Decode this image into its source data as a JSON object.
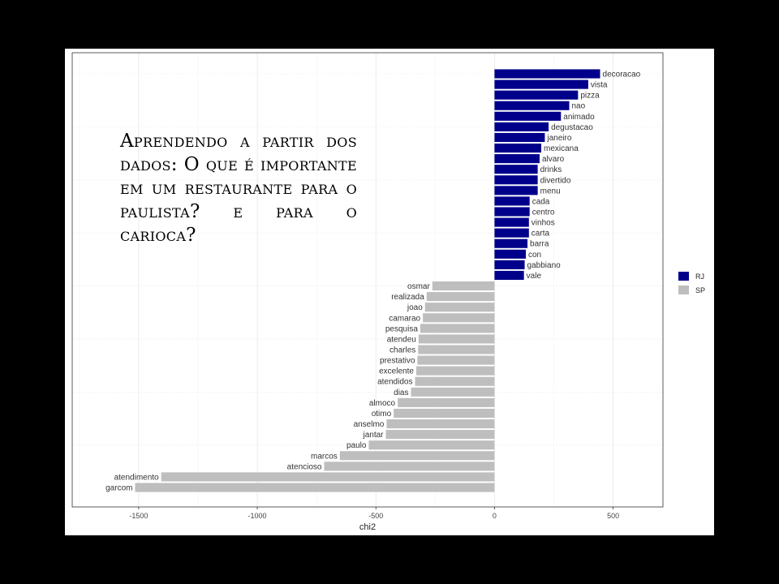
{
  "overlay_title": "Aprendendo a partir dos dados: O que é importante em um restaurante para o paulista? e para o carioca?",
  "chart_data": {
    "type": "bar",
    "orientation": "horizontal",
    "xlabel": "chi2",
    "ylabel": "",
    "xlim": [
      -1780,
      710
    ],
    "xticks": [
      -1500,
      -1000,
      -500,
      0,
      500
    ],
    "grid": true,
    "legend_position": "right",
    "series": [
      {
        "name": "RJ",
        "color": "#00008B"
      },
      {
        "name": "SP",
        "color": "#BEBEBE"
      }
    ],
    "bars": [
      {
        "label": "decoracao",
        "value": 445,
        "series": "RJ"
      },
      {
        "label": "vista",
        "value": 395,
        "series": "RJ"
      },
      {
        "label": "pizza",
        "value": 352,
        "series": "RJ"
      },
      {
        "label": "nao",
        "value": 315,
        "series": "RJ"
      },
      {
        "label": "animado",
        "value": 280,
        "series": "RJ"
      },
      {
        "label": "degustacao",
        "value": 228,
        "series": "RJ"
      },
      {
        "label": "janeiro",
        "value": 212,
        "series": "RJ"
      },
      {
        "label": "mexicana",
        "value": 197,
        "series": "RJ"
      },
      {
        "label": "alvaro",
        "value": 190,
        "series": "RJ"
      },
      {
        "label": "drinks",
        "value": 182,
        "series": "RJ"
      },
      {
        "label": "divertido",
        "value": 182,
        "series": "RJ"
      },
      {
        "label": "menu",
        "value": 182,
        "series": "RJ"
      },
      {
        "label": "cada",
        "value": 148,
        "series": "RJ"
      },
      {
        "label": "centro",
        "value": 148,
        "series": "RJ"
      },
      {
        "label": "vinhos",
        "value": 145,
        "series": "RJ"
      },
      {
        "label": "carta",
        "value": 145,
        "series": "RJ"
      },
      {
        "label": "barra",
        "value": 139,
        "series": "RJ"
      },
      {
        "label": "con",
        "value": 132,
        "series": "RJ"
      },
      {
        "label": "gabbiano",
        "value": 127,
        "series": "RJ"
      },
      {
        "label": "vale",
        "value": 124,
        "series": "RJ"
      },
      {
        "label": "osmar",
        "value": -262,
        "series": "SP"
      },
      {
        "label": "realizada",
        "value": -286,
        "series": "SP"
      },
      {
        "label": "joao",
        "value": -293,
        "series": "SP"
      },
      {
        "label": "camarao",
        "value": -302,
        "series": "SP"
      },
      {
        "label": "pesquisa",
        "value": -313,
        "series": "SP"
      },
      {
        "label": "atendeu",
        "value": -320,
        "series": "SP"
      },
      {
        "label": "charles",
        "value": -322,
        "series": "SP"
      },
      {
        "label": "prestativo",
        "value": -325,
        "series": "SP"
      },
      {
        "label": "excelente",
        "value": -330,
        "series": "SP"
      },
      {
        "label": "atendidos",
        "value": -335,
        "series": "SP"
      },
      {
        "label": "dias",
        "value": -352,
        "series": "SP"
      },
      {
        "label": "almoco",
        "value": -408,
        "series": "SP"
      },
      {
        "label": "otimo",
        "value": -425,
        "series": "SP"
      },
      {
        "label": "anselmo",
        "value": -455,
        "series": "SP"
      },
      {
        "label": "jantar",
        "value": -458,
        "series": "SP"
      },
      {
        "label": "paulo",
        "value": -530,
        "series": "SP"
      },
      {
        "label": "marcos",
        "value": -652,
        "series": "SP"
      },
      {
        "label": "atencioso",
        "value": -718,
        "series": "SP"
      },
      {
        "label": "atendimento",
        "value": -1405,
        "series": "SP"
      },
      {
        "label": "garcom",
        "value": -1515,
        "series": "SP"
      }
    ]
  }
}
